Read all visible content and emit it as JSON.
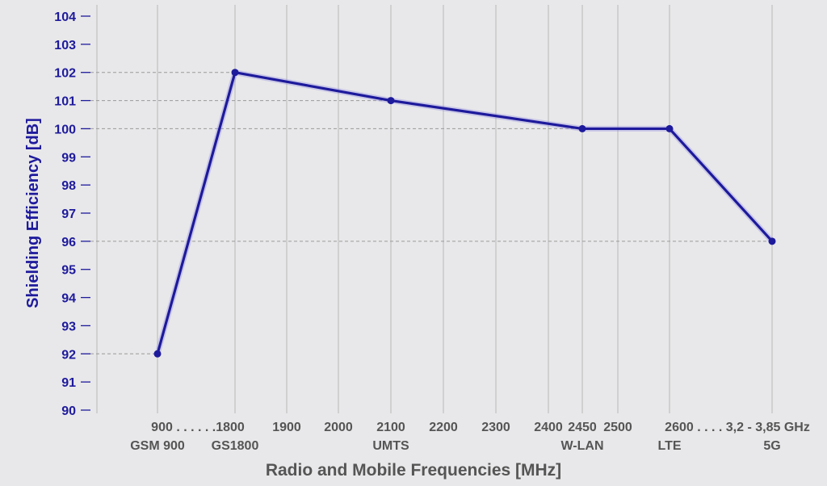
{
  "chart_data": {
    "type": "line",
    "xlabel": "Radio and Mobile Frequencies [MHz]",
    "ylabel": "Shielding Efficiency [dB]",
    "ylim": [
      90,
      104
    ],
    "yticks": [
      "90",
      "91",
      "92",
      "93",
      "94",
      "95",
      "96",
      "97",
      "98",
      "99",
      "100",
      "101",
      "102",
      "103",
      "104"
    ],
    "xtick_labels": [
      "900 . . . . . .1800",
      "1900",
      "2000",
      "2100",
      "2200",
      "2300",
      "2400",
      "2450",
      "2500",
      "2600 . . . . 3,2 - 3,85 GHz"
    ],
    "band_labels": [
      "GSM 900",
      "GS1800",
      "UMTS",
      "W-LAN",
      "LTE",
      "5G"
    ],
    "points": [
      {
        "x": "900",
        "y": 92
      },
      {
        "x": "1800",
        "y": 102
      },
      {
        "x": "2100",
        "y": 101
      },
      {
        "x": "2450",
        "y": 100
      },
      {
        "x": "2600",
        "y": 100
      },
      {
        "x": "3,2 - 3,85 GHz",
        "y": 96
      }
    ],
    "dashed_reference_values": [
      92,
      96,
      100,
      101,
      102
    ],
    "grid": true,
    "colors": {
      "line": "#1e1a9c",
      "axis_text": "#1e1a9c",
      "x_text": "#555555",
      "background": "#e8e8ea",
      "grid": "#b8b8b8"
    }
  }
}
